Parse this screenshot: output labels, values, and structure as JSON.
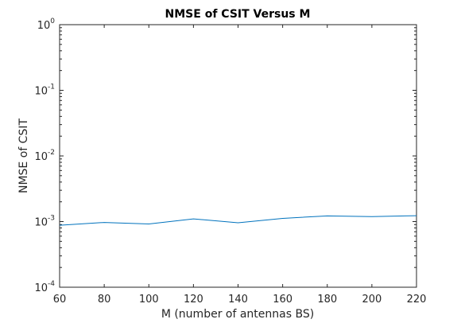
{
  "chart_data": {
    "type": "line",
    "title": "NMSE of CSIT Versus M",
    "xlabel": "M (number of antennas BS)",
    "ylabel": "NMSE of CSIT",
    "xlim": [
      60,
      220
    ],
    "ylim": [
      0.0001,
      1
    ],
    "yscale": "log",
    "grid": false,
    "x_ticks": [
      60,
      80,
      100,
      120,
      140,
      160,
      180,
      200,
      220
    ],
    "y_ticks": [
      {
        "base": "10",
        "exp": "-4",
        "value": 0.0001
      },
      {
        "base": "10",
        "exp": "-3",
        "value": 0.001
      },
      {
        "base": "10",
        "exp": "-2",
        "value": 0.01
      },
      {
        "base": "10",
        "exp": "-1",
        "value": 0.1
      },
      {
        "base": "10",
        "exp": "0",
        "value": 1
      }
    ],
    "series": [
      {
        "color": "#0072BD",
        "x": [
          60,
          80,
          100,
          120,
          140,
          160,
          180,
          200,
          220
        ],
        "y": [
          0.00088,
          0.00097,
          0.00092,
          0.0011,
          0.00096,
          0.00112,
          0.00122,
          0.00119,
          0.00123
        ]
      }
    ]
  }
}
